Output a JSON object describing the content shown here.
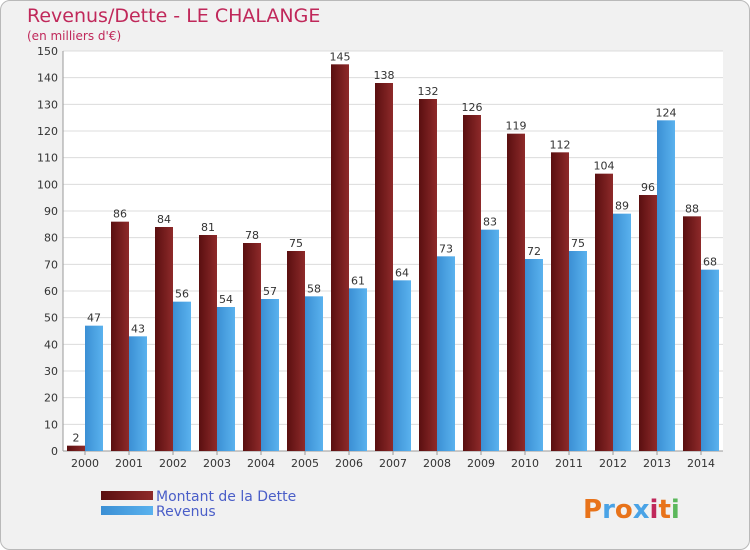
{
  "chart_data": {
    "type": "bar",
    "title": "Revenus/Dette - LE CHALANGE",
    "subtitle": "(en milliers d'€)",
    "categories": [
      "2000",
      "2001",
      "2002",
      "2003",
      "2004",
      "2005",
      "2006",
      "2007",
      "2008",
      "2009",
      "2010",
      "2011",
      "2012",
      "2013",
      "2014"
    ],
    "series": [
      {
        "name": "Montant de la Dette",
        "color": "#7b1c1c",
        "values": [
          2,
          86,
          84,
          81,
          78,
          75,
          145,
          138,
          132,
          126,
          119,
          112,
          104,
          96,
          88
        ]
      },
      {
        "name": "Revenus",
        "color": "#4aa3e6",
        "values": [
          47,
          43,
          56,
          54,
          57,
          58,
          61,
          64,
          73,
          83,
          72,
          75,
          89,
          124,
          68
        ]
      }
    ],
    "ylim": [
      0,
      150
    ],
    "yticks": [
      0,
      10,
      20,
      30,
      40,
      50,
      60,
      70,
      80,
      90,
      100,
      110,
      120,
      130,
      140,
      150
    ],
    "grid": true,
    "legend_position": "bottom-left"
  },
  "logo": {
    "text": "Proxiti",
    "letter_colors": [
      "#e8731a",
      "#4aa3e6",
      "#e8731a",
      "#4aa3e6",
      "#c0285a",
      "#e8731a",
      "#5cb85c"
    ]
  }
}
